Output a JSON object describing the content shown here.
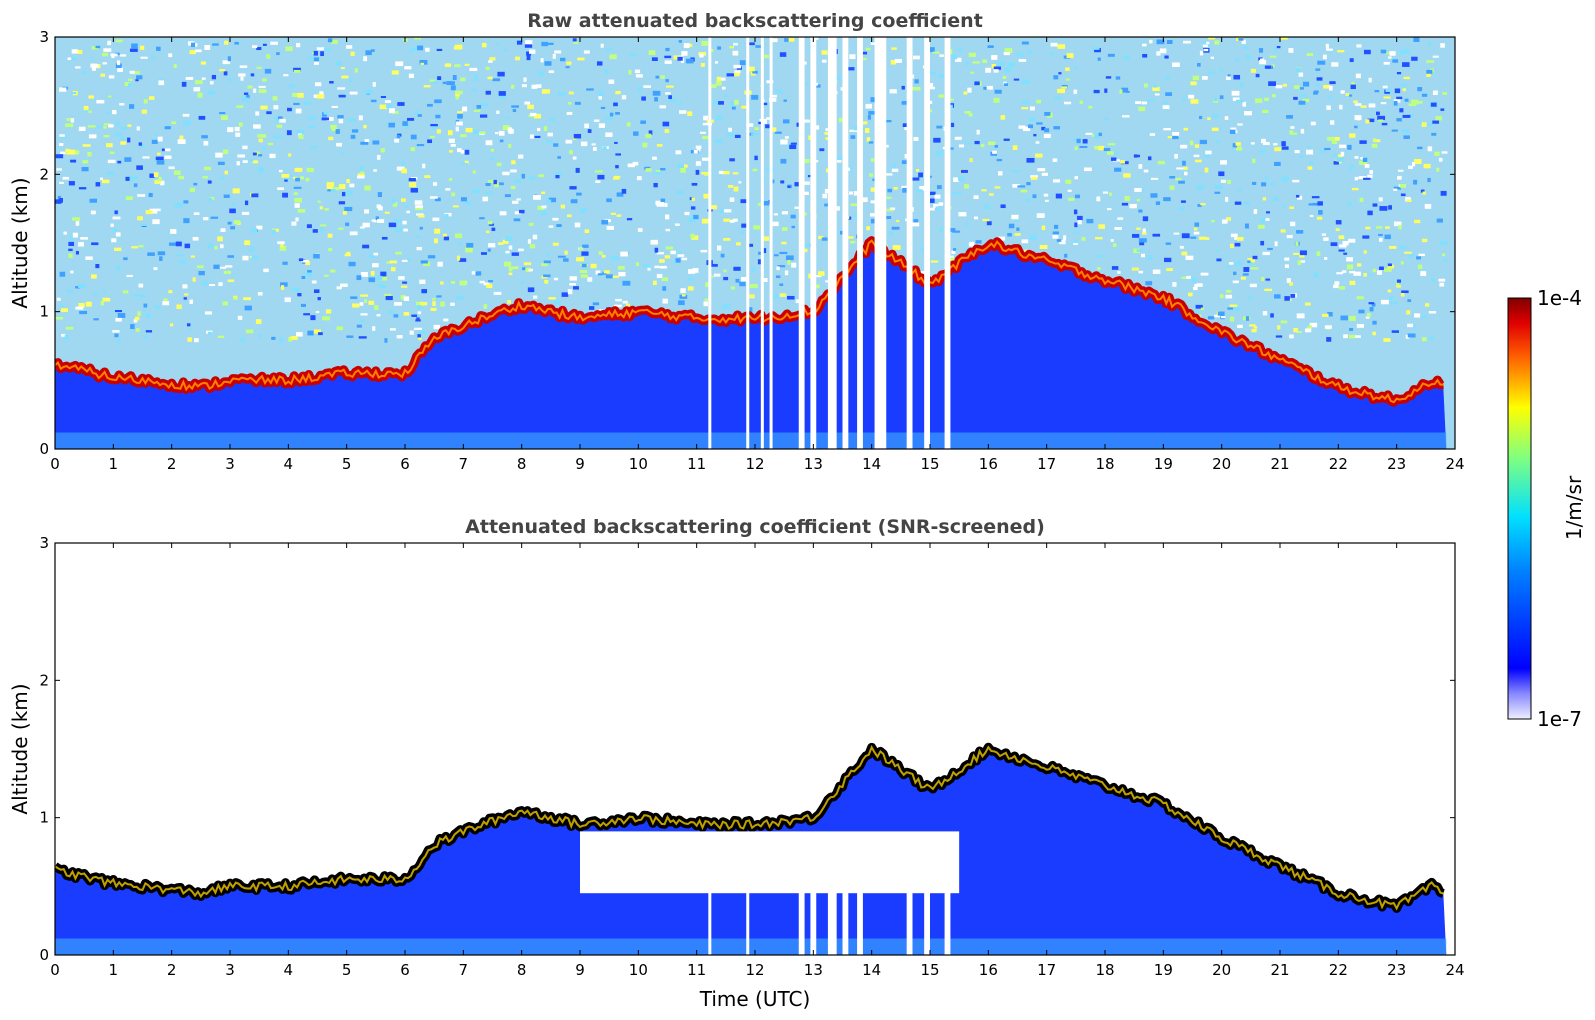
{
  "chart_data": [
    {
      "type": "heatmap",
      "title": "Raw attenuated backscattering coefficient",
      "xlabel": "",
      "ylabel": "Altitude (km)",
      "xlim": [
        0,
        24
      ],
      "ylim": [
        0,
        3
      ],
      "xticks": [
        "0",
        "1",
        "2",
        "3",
        "4",
        "5",
        "6",
        "7",
        "8",
        "9",
        "10",
        "11",
        "12",
        "13",
        "14",
        "15",
        "16",
        "17",
        "18",
        "19",
        "20",
        "21",
        "22",
        "23",
        "24"
      ],
      "yticks": [
        "0",
        "1",
        "2",
        "3"
      ],
      "cloud_base_km": [
        [
          0,
          0.62
        ],
        [
          1,
          0.52
        ],
        [
          1.5,
          0.5
        ],
        [
          2.5,
          0.45
        ],
        [
          3,
          0.5
        ],
        [
          4,
          0.5
        ],
        [
          5,
          0.55
        ],
        [
          6,
          0.55
        ],
        [
          6.5,
          0.8
        ],
        [
          7,
          0.9
        ],
        [
          8,
          1.05
        ],
        [
          9,
          0.95
        ],
        [
          10,
          1.0
        ],
        [
          11,
          0.95
        ],
        [
          12,
          0.95
        ],
        [
          13,
          1.0
        ],
        [
          14,
          1.5
        ],
        [
          15,
          1.2
        ],
        [
          16,
          1.5
        ],
        [
          19,
          1.1
        ],
        [
          20,
          0.85
        ],
        [
          21,
          0.65
        ],
        [
          22,
          0.45
        ],
        [
          23,
          0.35
        ],
        [
          23.6,
          0.5
        ],
        [
          23.8,
          0.45
        ]
      ],
      "data_gaps_utc": [
        [
          11.2,
          11.23
        ],
        [
          11.85,
          11.9
        ],
        [
          12.1,
          12.13
        ],
        [
          12.25,
          12.28
        ],
        [
          12.75,
          12.85
        ],
        [
          12.95,
          13.05
        ],
        [
          13.25,
          13.4
        ],
        [
          13.5,
          13.6
        ],
        [
          13.75,
          13.85
        ],
        [
          14.05,
          14.25
        ],
        [
          14.6,
          14.7
        ],
        [
          14.9,
          15.0
        ],
        [
          15.25,
          15.35
        ]
      ],
      "colorscale": "jet"
    },
    {
      "type": "heatmap",
      "title": "Attenuated backscattering coefficient (SNR-screened)",
      "xlabel": "Time (UTC)",
      "ylabel": "Altitude (km)",
      "xlim": [
        0,
        24
      ],
      "ylim": [
        0,
        3
      ],
      "xticks": [
        "0",
        "1",
        "2",
        "3",
        "4",
        "5",
        "6",
        "7",
        "8",
        "9",
        "10",
        "11",
        "12",
        "13",
        "14",
        "15",
        "16",
        "17",
        "18",
        "19",
        "20",
        "21",
        "22",
        "23",
        "24"
      ],
      "yticks": [
        "0",
        "1",
        "2",
        "3"
      ],
      "cloud_base_km": [
        [
          0,
          0.62
        ],
        [
          1,
          0.52
        ],
        [
          1.5,
          0.5
        ],
        [
          2.5,
          0.45
        ],
        [
          3,
          0.5
        ],
        [
          4,
          0.5
        ],
        [
          5,
          0.55
        ],
        [
          6,
          0.55
        ],
        [
          6.5,
          0.8
        ],
        [
          7,
          0.9
        ],
        [
          8,
          1.05
        ],
        [
          9,
          0.95
        ],
        [
          10,
          1.0
        ],
        [
          11,
          0.95
        ],
        [
          12,
          0.95
        ],
        [
          13,
          1.0
        ],
        [
          14,
          1.5
        ],
        [
          15,
          1.2
        ],
        [
          16,
          1.5
        ],
        [
          19,
          1.1
        ],
        [
          20,
          0.85
        ],
        [
          21,
          0.65
        ],
        [
          22,
          0.45
        ],
        [
          23,
          0.35
        ],
        [
          23.6,
          0.5
        ],
        [
          23.8,
          0.45
        ]
      ],
      "colorscale": "jet"
    }
  ],
  "colorbar": {
    "label": "1/m/sr",
    "max_label": "1e-4",
    "min_label": "1e-7",
    "colors": [
      "#7f0000",
      "#ff0000",
      "#ff8000",
      "#ffff00",
      "#80ff80",
      "#00ffff",
      "#0080ff",
      "#0000ff",
      "#e8e8ff"
    ]
  }
}
